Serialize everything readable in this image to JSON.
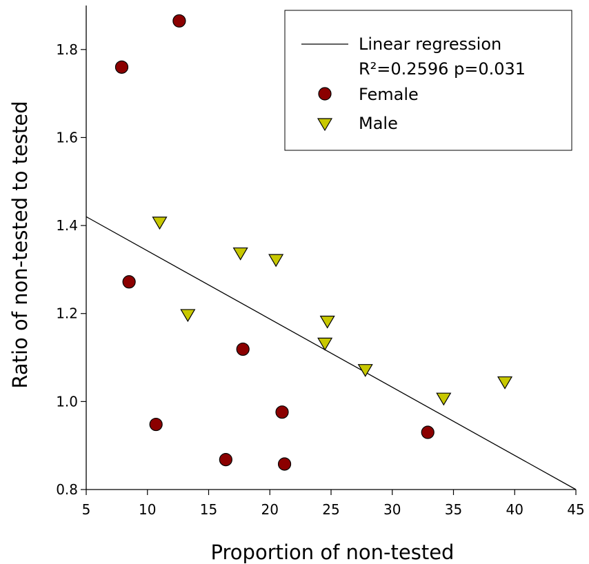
{
  "chart_data": {
    "type": "scatter",
    "xlabel": "Proportion of non-tested",
    "ylabel": "Ratio of non-tested to tested",
    "xlim": [
      5,
      45
    ],
    "ylim": [
      0.8,
      1.9
    ],
    "xticks": [
      5,
      10,
      15,
      20,
      25,
      30,
      35,
      40,
      45
    ],
    "xtick_labels": [
      "5",
      "10",
      "15",
      "20",
      "25",
      "30",
      "35",
      "40",
      "45"
    ],
    "yticks": [
      0.8,
      1.0,
      1.2,
      1.4,
      1.6,
      1.8
    ],
    "ytick_labels": [
      "0.8",
      "1.0",
      "1.2",
      "1.4",
      "1.6",
      "1.8"
    ],
    "grid": false,
    "legend_position": "top-right",
    "regression": {
      "label": "Linear regression",
      "stats": "R²=0.2596 p=0.031",
      "x": [
        5,
        45
      ],
      "y": [
        1.42,
        0.8
      ]
    },
    "series": [
      {
        "name": "Female",
        "marker": "circle",
        "color": "#8b0000",
        "points": [
          {
            "x": 7.9,
            "y": 1.76
          },
          {
            "x": 12.6,
            "y": 1.865
          },
          {
            "x": 8.5,
            "y": 1.272
          },
          {
            "x": 17.8,
            "y": 1.119
          },
          {
            "x": 10.7,
            "y": 0.948
          },
          {
            "x": 16.4,
            "y": 0.868
          },
          {
            "x": 21.0,
            "y": 0.976
          },
          {
            "x": 21.2,
            "y": 0.858
          },
          {
            "x": 32.9,
            "y": 0.93
          }
        ]
      },
      {
        "name": "Male",
        "marker": "triangle-down",
        "color": "#c8c800",
        "points": [
          {
            "x": 11.0,
            "y": 1.405
          },
          {
            "x": 13.3,
            "y": 1.195
          },
          {
            "x": 17.6,
            "y": 1.335
          },
          {
            "x": 20.5,
            "y": 1.32
          },
          {
            "x": 24.7,
            "y": 1.18
          },
          {
            "x": 24.5,
            "y": 1.13
          },
          {
            "x": 27.8,
            "y": 1.07
          },
          {
            "x": 34.2,
            "y": 1.005
          },
          {
            "x": 39.2,
            "y": 1.042
          }
        ]
      }
    ]
  }
}
